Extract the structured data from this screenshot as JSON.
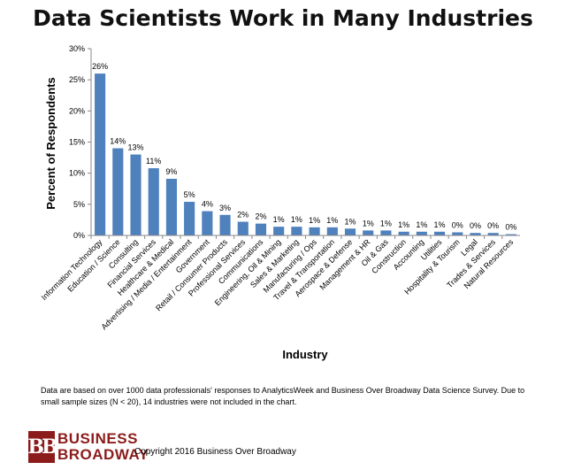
{
  "chart_data": {
    "type": "bar",
    "title": "Data Scientists Work in Many Industries",
    "xlabel": "Industry",
    "ylabel": "Percent of Respondents",
    "ylim": [
      0,
      30
    ],
    "yticks": [
      "0%",
      "5%",
      "10%",
      "15%",
      "20%",
      "25%",
      "30%"
    ],
    "grid": false,
    "bar_color": "#4f81bd",
    "categories": [
      "Information Technology",
      "Education / Science",
      "Consulting",
      "Financial Services",
      "Healthcare & Medical",
      "Advertising / Media / Entertainment",
      "Government",
      "Retail / Consumer Products",
      "Professional Services",
      "Communications",
      "Engineering, Oil & Mining",
      "Sales & Marketing",
      "Manufacturing / Ops",
      "Travel & Transportation",
      "Aerospace & Defense",
      "Management & HR",
      "Oil & Gas",
      "Construction",
      "Accounting",
      "Utilities",
      "Hospitality & Tourism",
      "Legal",
      "Trades & Services",
      "Natural Resources"
    ],
    "values": [
      26,
      14,
      13,
      10.8,
      9.1,
      5.4,
      3.9,
      3.3,
      2.2,
      1.9,
      1.4,
      1.4,
      1.3,
      1.3,
      1.1,
      0.8,
      0.8,
      0.6,
      0.6,
      0.6,
      0.5,
      0.4,
      0.4,
      0.2
    ],
    "data_labels": [
      "26%",
      "14%",
      "13%",
      "11%",
      "9%",
      "5%",
      "4%",
      "3%",
      "2%",
      "2%",
      "1%",
      "1%",
      "1%",
      "1%",
      "1%",
      "1%",
      "1%",
      "1%",
      "1%",
      "1%",
      "0%",
      "0%",
      "0%",
      "0%"
    ]
  },
  "footnote": "Data are based on over 1000 data professionals' responses to AnalyticsWeek and Business Over Broadway Data Science Survey. Due to small  sample sizes (N < 20), 14 industries were not included in the chart.",
  "logo": {
    "mark": "BB",
    "line1": "BUSINESS",
    "line2": "BROADWAY",
    "color": "#8c1c1c"
  },
  "copyright": "Copyright 2016 Business Over Broadway"
}
